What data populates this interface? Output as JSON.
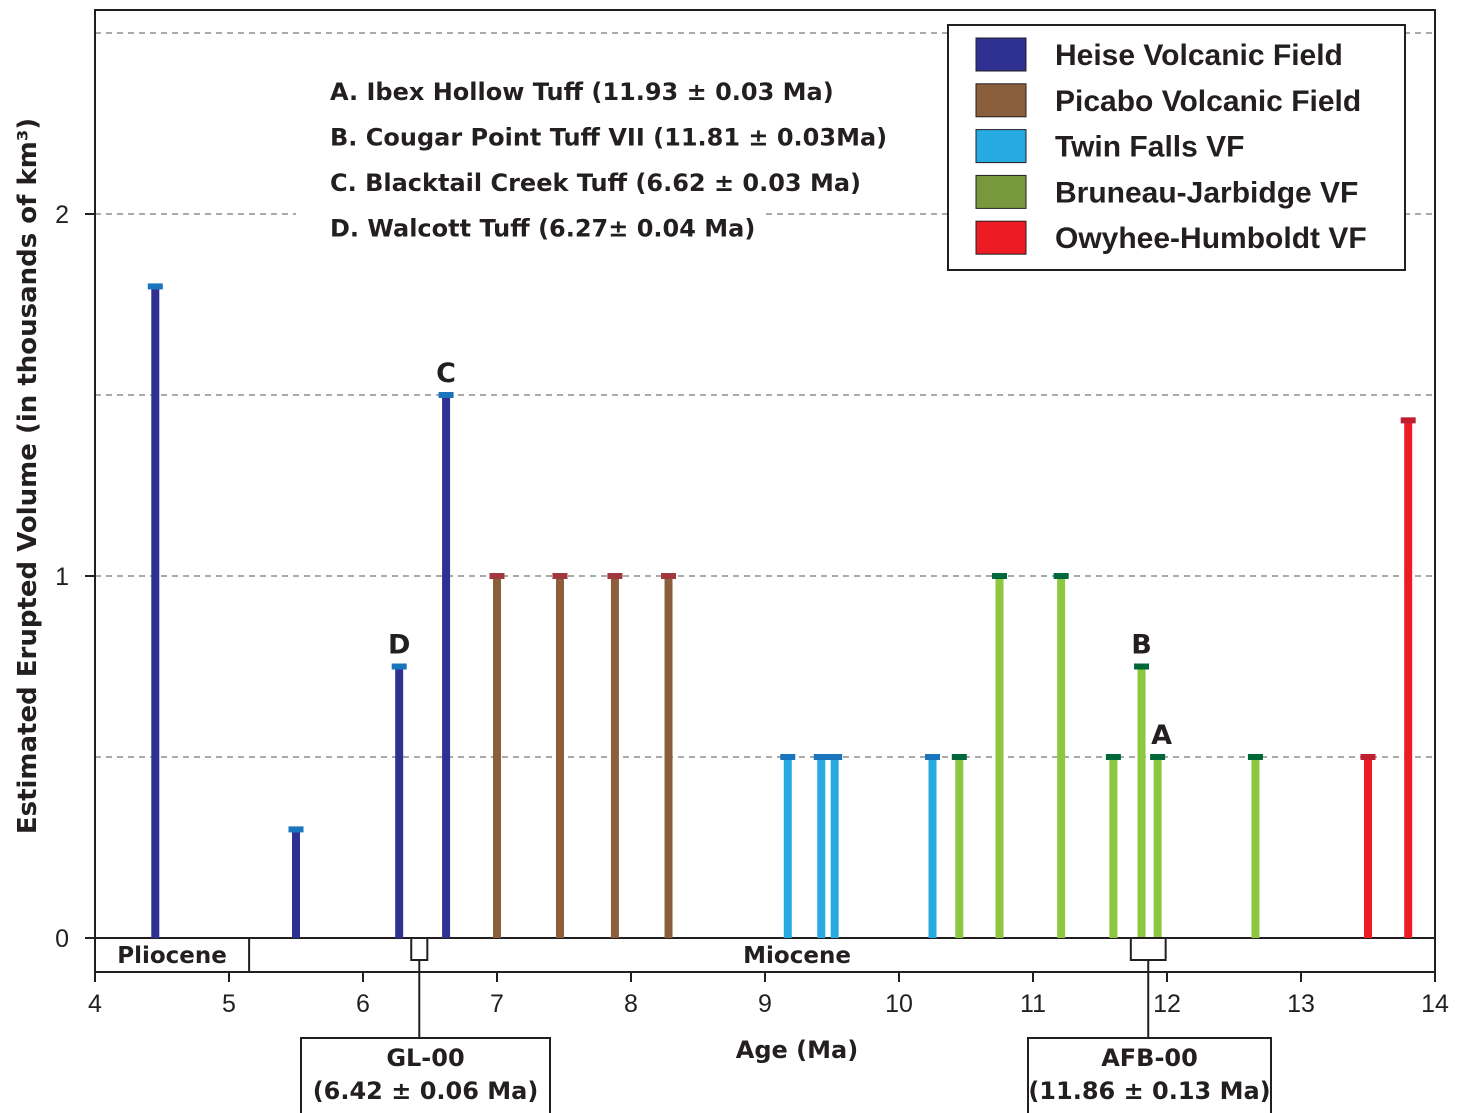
{
  "chart_data": {
    "type": "bar",
    "xlabel": "Age (Ma)",
    "ylabel": "Estimated Erupted Volume  (in thousands of km³)",
    "xlim": [
      4,
      14
    ],
    "ylim": [
      0,
      2.5
    ],
    "xticks": [
      4,
      5,
      6,
      7,
      8,
      9,
      10,
      11,
      12,
      13,
      14
    ],
    "yticks": [
      0,
      1,
      2
    ],
    "grid": {
      "axis": "y",
      "style": "dashed",
      "values": [
        0.5,
        1,
        1.5,
        2,
        2.5
      ]
    },
    "legend_position": "top-right",
    "series": [
      {
        "name": "Heise Volcanic Field",
        "color": "#2e3192",
        "cap_color": "#1b75bc",
        "points": [
          {
            "x": 4.45,
            "y": 1.8
          },
          {
            "x": 5.5,
            "y": 0.3
          },
          {
            "x": 6.27,
            "y": 0.75
          },
          {
            "x": 6.62,
            "y": 1.5
          }
        ]
      },
      {
        "name": "Picabo Volcanic Field",
        "color": "#8b5e3c",
        "cap_color": "#a0383d",
        "points": [
          {
            "x": 7.0,
            "y": 1.0
          },
          {
            "x": 7.47,
            "y": 1.0
          },
          {
            "x": 7.88,
            "y": 1.0
          },
          {
            "x": 8.28,
            "y": 1.0
          }
        ]
      },
      {
        "name": "Twin Falls VF",
        "color": "#27aae1",
        "cap_color": "#1b75bc",
        "points": [
          {
            "x": 9.17,
            "y": 0.5
          },
          {
            "x": 9.42,
            "y": 0.5
          },
          {
            "x": 9.52,
            "y": 0.5
          },
          {
            "x": 10.25,
            "y": 0.5
          }
        ]
      },
      {
        "name": "Bruneau-Jarbidge VF",
        "color": "#8dc63f",
        "legend_color": "#77983d",
        "cap_color": "#006838",
        "points": [
          {
            "x": 10.45,
            "y": 0.5
          },
          {
            "x": 10.75,
            "y": 1.0
          },
          {
            "x": 11.21,
            "y": 1.0
          },
          {
            "x": 11.6,
            "y": 0.5
          },
          {
            "x": 11.81,
            "y": 0.75
          },
          {
            "x": 11.93,
            "y": 0.5
          },
          {
            "x": 12.66,
            "y": 0.5
          }
        ]
      },
      {
        "name": "Owyhee-Humboldt VF",
        "color": "#ed1c24",
        "cap_color": "#be1e2d",
        "points": [
          {
            "x": 13.5,
            "y": 0.5
          },
          {
            "x": 13.8,
            "y": 1.43
          }
        ]
      }
    ],
    "point_labels": [
      {
        "text": "A",
        "x": 11.93,
        "y": 0.5
      },
      {
        "text": "B",
        "x": 11.81,
        "y": 0.75
      },
      {
        "text": "C",
        "x": 6.62,
        "y": 1.5
      },
      {
        "text": "D",
        "x": 6.27,
        "y": 0.75
      }
    ],
    "annotations": [
      "A. Ibex Hollow Tuff  (11.93 ± 0.03 Ma)",
      "B. Cougar Point Tuff VII  (11.81 ± 0.03Ma)",
      "C. Blacktail Creek  Tuff (6.62 ± 0.03 Ma)",
      "D. Walcott Tuff  (6.27± 0.04 Ma)"
    ],
    "epochs": [
      {
        "name": "Pliocene",
        "from": 4,
        "to": 5.15
      },
      {
        "name": "Miocene",
        "from": 5.15,
        "to": 14
      }
    ],
    "samples": [
      {
        "name": "GL-00",
        "age_label": "(6.42 ± 0.06 Ma)",
        "age": 6.42,
        "range": [
          6.36,
          6.48
        ]
      },
      {
        "name": "AFB-00",
        "age_label": "(11.86 ± 0.13 Ma)",
        "age": 11.86,
        "range": [
          11.73,
          11.99
        ]
      }
    ]
  }
}
